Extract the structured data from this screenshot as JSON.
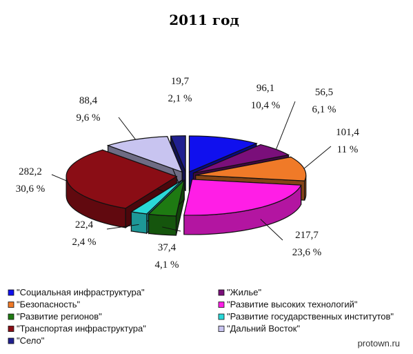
{
  "chart_data": {
    "type": "pie",
    "title": "2011 год",
    "slices": [
      {
        "label": "\"Социальная инфраструктура\"",
        "value": 96.1,
        "value_text": "96,1",
        "percent_text": "10,4 %",
        "color": "#1010ee"
      },
      {
        "label": "\"Жилье\"",
        "value": 56.5,
        "value_text": "56,5",
        "percent_text": "6,1 %",
        "color": "#7a0f7a"
      },
      {
        "label": "\"Безопасность\"",
        "value": 101.4,
        "value_text": "101,4",
        "percent_text": "11 %",
        "color": "#f07a28"
      },
      {
        "label": "\"Развитие высоких технологий\"",
        "value": 217.7,
        "value_text": "217,7",
        "percent_text": "23,6 %",
        "color": "#ff1ee6"
      },
      {
        "label": "\"Развитие регионов\"",
        "value": 37.4,
        "value_text": "37,4",
        "percent_text": "4,1 %",
        "color": "#1e7a12"
      },
      {
        "label": "\"Развитие государственных институтов\"",
        "value": 22.4,
        "value_text": "22,4",
        "percent_text": "2,4 %",
        "color": "#2ad8d8"
      },
      {
        "label": "\"Транспортая инфраструктура\"",
        "value": 282.2,
        "value_text": "282,2",
        "percent_text": "30,6 %",
        "color": "#8a0d15"
      },
      {
        "label": "\"Дальний Восток\"",
        "value": 88.4,
        "value_text": "88,4",
        "percent_text": "9,6 %",
        "color": "#c8c4f0"
      },
      {
        "label": "\"Село\"",
        "value": 19.7,
        "value_text": "19,7",
        "percent_text": "2,1 %",
        "color": "#202090"
      }
    ],
    "legend_position": "bottom"
  },
  "watermark": "protown.ru"
}
